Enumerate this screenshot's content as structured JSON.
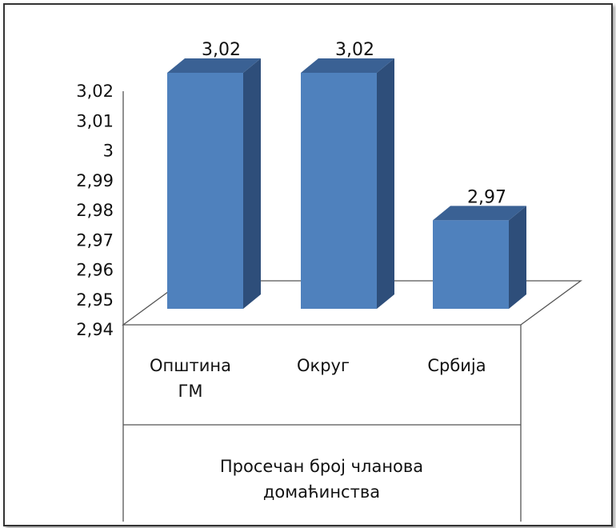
{
  "chart_data": {
    "type": "bar",
    "style": "3d-column",
    "categories": [
      [
        "Општина",
        "ГМ"
      ],
      [
        "Округ"
      ],
      [
        "Србија"
      ]
    ],
    "values": [
      3.02,
      3.02,
      2.97
    ],
    "data_labels": [
      "3,02",
      "3,02",
      "2,97"
    ],
    "ylim": [
      2.94,
      3.02
    ],
    "yticks": [
      "2,94",
      "2,95",
      "2,96",
      "2,97",
      "2,98",
      "2,99",
      "3",
      "3,01",
      "3,02"
    ],
    "ytick_values": [
      2.94,
      2.95,
      2.96,
      2.97,
      2.98,
      2.99,
      3.0,
      3.01,
      3.02
    ],
    "xlabel": [
      "Просечан број чланова",
      "домаћинства"
    ],
    "ylabel": "",
    "title": "",
    "legend": "none",
    "grid": false,
    "colors": {
      "front": "#4f81bd",
      "side": "#2e4e7a",
      "top": "#3a6194",
      "axis": "#555555",
      "frame": "#333333"
    }
  }
}
